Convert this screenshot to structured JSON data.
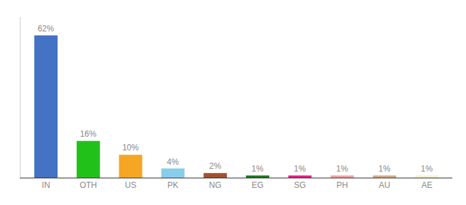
{
  "chart_data": {
    "type": "bar",
    "categories": [
      "IN",
      "OTH",
      "US",
      "PK",
      "NG",
      "EG",
      "SG",
      "PH",
      "AU",
      "AE"
    ],
    "values": [
      62,
      16,
      10,
      4,
      2,
      1,
      1,
      1,
      1,
      1
    ],
    "value_labels": [
      "62%",
      "16%",
      "10%",
      "4%",
      "2%",
      "1%",
      "1%",
      "1%",
      "1%",
      "1%"
    ],
    "colors": [
      "#4472c4",
      "#22c11a",
      "#f5a623",
      "#87ceeb",
      "#a0522d",
      "#1e7a1e",
      "#e91e8c",
      "#f4a0a0",
      "#d4a882",
      "#f5f0d0"
    ],
    "ylim": [
      0,
      70
    ],
    "yticks": [],
    "grid": false,
    "data_labels": true,
    "tick_labels": "x"
  }
}
